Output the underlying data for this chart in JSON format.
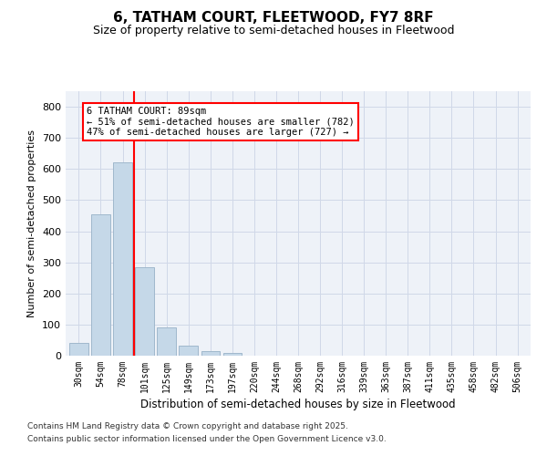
{
  "title1": "6, TATHAM COURT, FLEETWOOD, FY7 8RF",
  "title2": "Size of property relative to semi-detached houses in Fleetwood",
  "xlabel": "Distribution of semi-detached houses by size in Fleetwood",
  "ylabel": "Number of semi-detached properties",
  "categories": [
    "30sqm",
    "54sqm",
    "78sqm",
    "101sqm",
    "125sqm",
    "149sqm",
    "173sqm",
    "197sqm",
    "220sqm",
    "244sqm",
    "268sqm",
    "292sqm",
    "316sqm",
    "339sqm",
    "363sqm",
    "387sqm",
    "411sqm",
    "435sqm",
    "458sqm",
    "482sqm",
    "506sqm"
  ],
  "values": [
    40,
    455,
    620,
    285,
    92,
    32,
    15,
    8,
    0,
    0,
    0,
    0,
    0,
    0,
    0,
    0,
    0,
    0,
    0,
    0,
    0
  ],
  "bar_color": "#c5d8e8",
  "bar_edge_color": "#a0b8cc",
  "vline_x": 2.5,
  "vline_color": "red",
  "annotation_text": "6 TATHAM COURT: 89sqm\n← 51% of semi-detached houses are smaller (782)\n47% of semi-detached houses are larger (727) →",
  "annotation_box_color": "white",
  "annotation_box_edge": "red",
  "ylim": [
    0,
    850
  ],
  "yticks": [
    0,
    100,
    200,
    300,
    400,
    500,
    600,
    700,
    800
  ],
  "grid_color": "#d0d8e8",
  "footer1": "Contains HM Land Registry data © Crown copyright and database right 2025.",
  "footer2": "Contains public sector information licensed under the Open Government Licence v3.0.",
  "bg_color": "#eef2f8"
}
